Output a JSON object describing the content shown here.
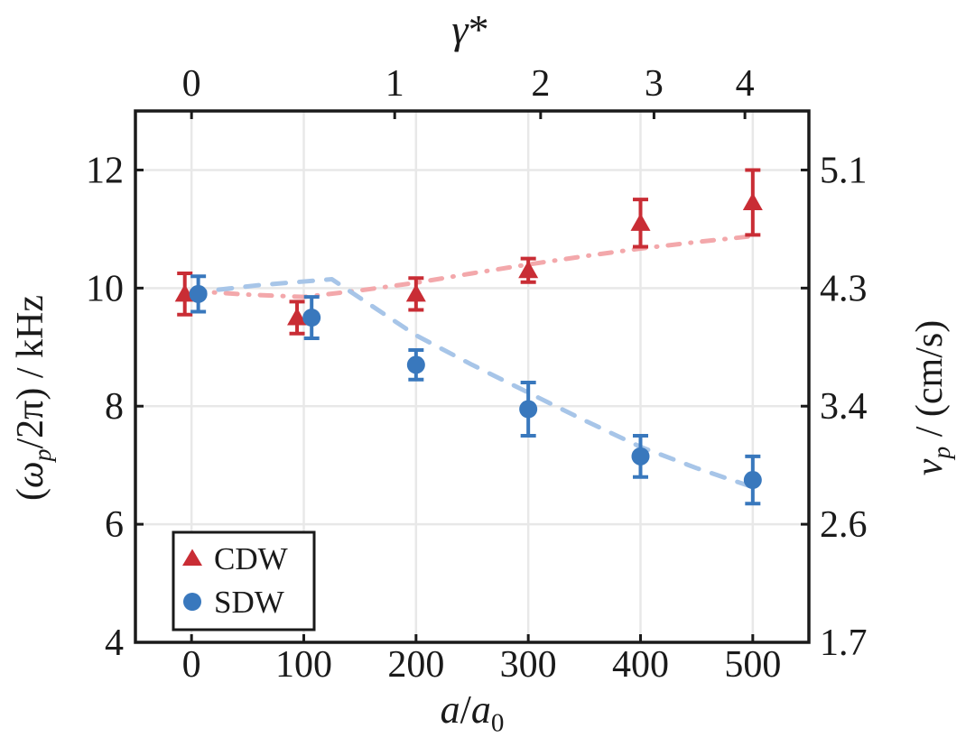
{
  "figure": {
    "background": "#ffffff",
    "frame_color": "#1a1a1a",
    "grid_color": "#e8e8e8",
    "text_color": "#1a1a1a"
  },
  "chart_data": {
    "type": "scatter",
    "title": "",
    "xlabel": "a/a0",
    "top_axis_label": "γ*",
    "ylabel_left": "(ω_p/2π) / kHz",
    "ylabel_right": "v_p / (cm/s)",
    "xlim": [
      -50,
      550
    ],
    "ylim_left": [
      4,
      13
    ],
    "grid": true,
    "x_ticks": [
      0,
      100,
      200,
      300,
      400,
      500
    ],
    "y_ticks_left": [
      4,
      6,
      8,
      10,
      12
    ],
    "right_ticks": [
      {
        "label": "1.7",
        "at_left_value": 4
      },
      {
        "label": "2.6",
        "at_left_value": 6
      },
      {
        "label": "3.4",
        "at_left_value": 8
      },
      {
        "label": "4.3",
        "at_left_value": 10
      },
      {
        "label": "5.1",
        "at_left_value": 12
      }
    ],
    "top_ticks": [
      {
        "label": "0",
        "x": 0
      },
      {
        "label": "1",
        "x": 181
      },
      {
        "label": "2",
        "x": 311
      },
      {
        "label": "3",
        "x": 412
      },
      {
        "label": "4",
        "x": 493
      }
    ],
    "series": [
      {
        "name": "CDW",
        "marker": "triangle",
        "color": "#c92d35",
        "x": [
          0,
          100,
          200,
          300,
          400,
          500
        ],
        "x_plot_offset": [
          -6,
          -6,
          0,
          0,
          0,
          0
        ],
        "y": [
          9.9,
          9.5,
          9.9,
          10.3,
          11.1,
          11.45
        ],
        "yerr": [
          0.35,
          0.27,
          0.27,
          0.2,
          0.4,
          0.55
        ]
      },
      {
        "name": "SDW",
        "marker": "circle",
        "color": "#3978bd",
        "x": [
          0,
          100,
          200,
          300,
          400,
          500
        ],
        "x_plot_offset": [
          6,
          7,
          0,
          0,
          0,
          0
        ],
        "y": [
          9.9,
          9.5,
          8.7,
          7.95,
          7.15,
          6.75
        ],
        "yerr": [
          0.3,
          0.35,
          0.25,
          0.45,
          0.35,
          0.4
        ]
      }
    ],
    "fit_lines": [
      {
        "name": "CDW fit",
        "style": "dash-dot",
        "color": "#f3a8ab",
        "points": [
          [
            0,
            9.95
          ],
          [
            50,
            9.89
          ],
          [
            100,
            9.85
          ],
          [
            150,
            9.96
          ],
          [
            200,
            10.09
          ],
          [
            250,
            10.25
          ],
          [
            300,
            10.4
          ],
          [
            350,
            10.54
          ],
          [
            400,
            10.67
          ],
          [
            450,
            10.78
          ],
          [
            500,
            10.88
          ]
        ]
      },
      {
        "name": "SDW fit",
        "style": "dashed",
        "color": "#a7c5e8",
        "points": [
          [
            0,
            9.92
          ],
          [
            60,
            10.05
          ],
          [
            125,
            10.15
          ],
          [
            200,
            9.2
          ],
          [
            250,
            8.7
          ],
          [
            300,
            8.23
          ],
          [
            350,
            7.76
          ],
          [
            400,
            7.31
          ],
          [
            450,
            6.95
          ],
          [
            500,
            6.63
          ]
        ]
      }
    ],
    "legend": {
      "position": "lower-left",
      "items": [
        {
          "label": "CDW",
          "marker": "triangle"
        },
        {
          "label": "SDW",
          "marker": "circle"
        }
      ]
    }
  },
  "label_segments": {
    "xlabel": [
      {
        "t": "a",
        "i": true
      },
      {
        "t": "/"
      },
      {
        "t": "a",
        "i": true
      },
      {
        "t": "0",
        "sub": true
      }
    ],
    "top": [
      {
        "t": "γ",
        "i": true
      },
      {
        "t": "*"
      }
    ],
    "left": [
      {
        "t": "("
      },
      {
        "t": "ω",
        "i": true
      },
      {
        "t": "p",
        "i": true,
        "sub": true
      },
      {
        "t": "/2π) / kHz"
      }
    ],
    "right": [
      {
        "t": "v",
        "i": true
      },
      {
        "t": "p",
        "i": true,
        "sub": true
      },
      {
        "t": " / (cm/s)"
      }
    ]
  }
}
